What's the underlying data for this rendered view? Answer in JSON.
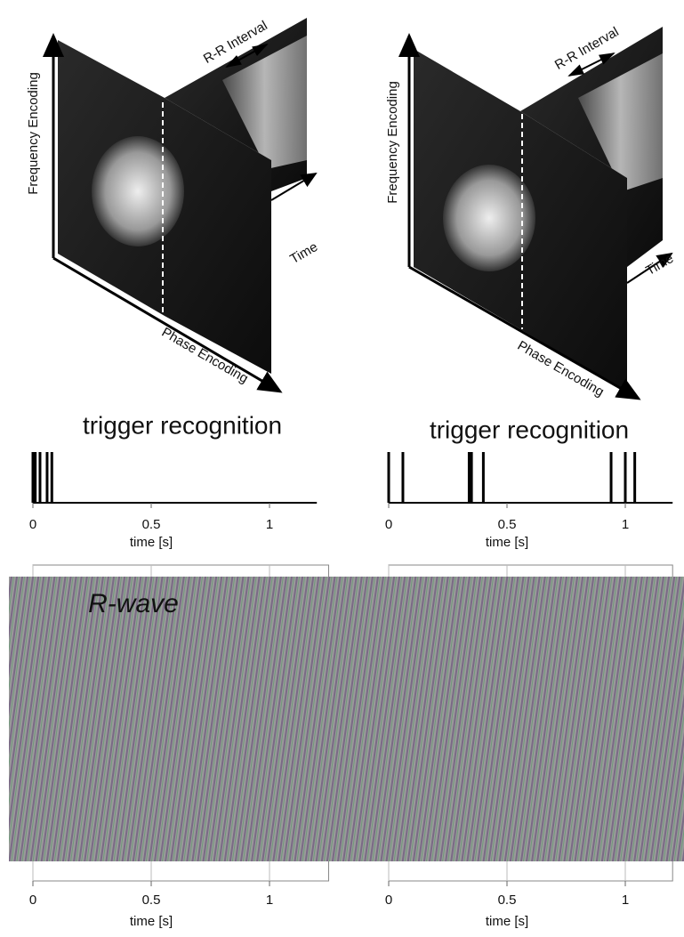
{
  "panels": [
    {
      "frequency": "Frequency Encoding",
      "rr": "R-R Interval",
      "time": "Time",
      "phase": "Phase Encoding"
    },
    {
      "frequency": "Frequency Encoding",
      "rr": "R-R Interval",
      "time": "Time",
      "phase": "Phase Encoding"
    }
  ],
  "chart_data": [
    {
      "type": "spike",
      "title": "trigger recognition",
      "x": [
        0,
        0.01,
        0.03,
        0.06,
        0.08
      ],
      "xlim": [
        0,
        1.2
      ],
      "xticks": [
        0,
        0.5,
        1
      ],
      "xlabel": "time [s]"
    },
    {
      "type": "spike",
      "title": "trigger recognition",
      "x": [
        0,
        0.06,
        0.34,
        0.35,
        0.4,
        0.94,
        1.0,
        1.04
      ],
      "xlim": [
        0,
        1.2
      ],
      "xticks": [
        0,
        0.5,
        1
      ],
      "xlabel": "time [s]"
    },
    {
      "type": "grid",
      "annotation": "R-wave",
      "xlim": [
        0,
        1.25
      ],
      "xticks": [
        0,
        0.5,
        1
      ],
      "xlabel": "time [s]",
      "grid": true
    },
    {
      "type": "grid",
      "xlim": [
        0,
        1.2
      ],
      "xticks": [
        0,
        0.5,
        1
      ],
      "xlabel": "time [s]",
      "grid": true
    }
  ]
}
